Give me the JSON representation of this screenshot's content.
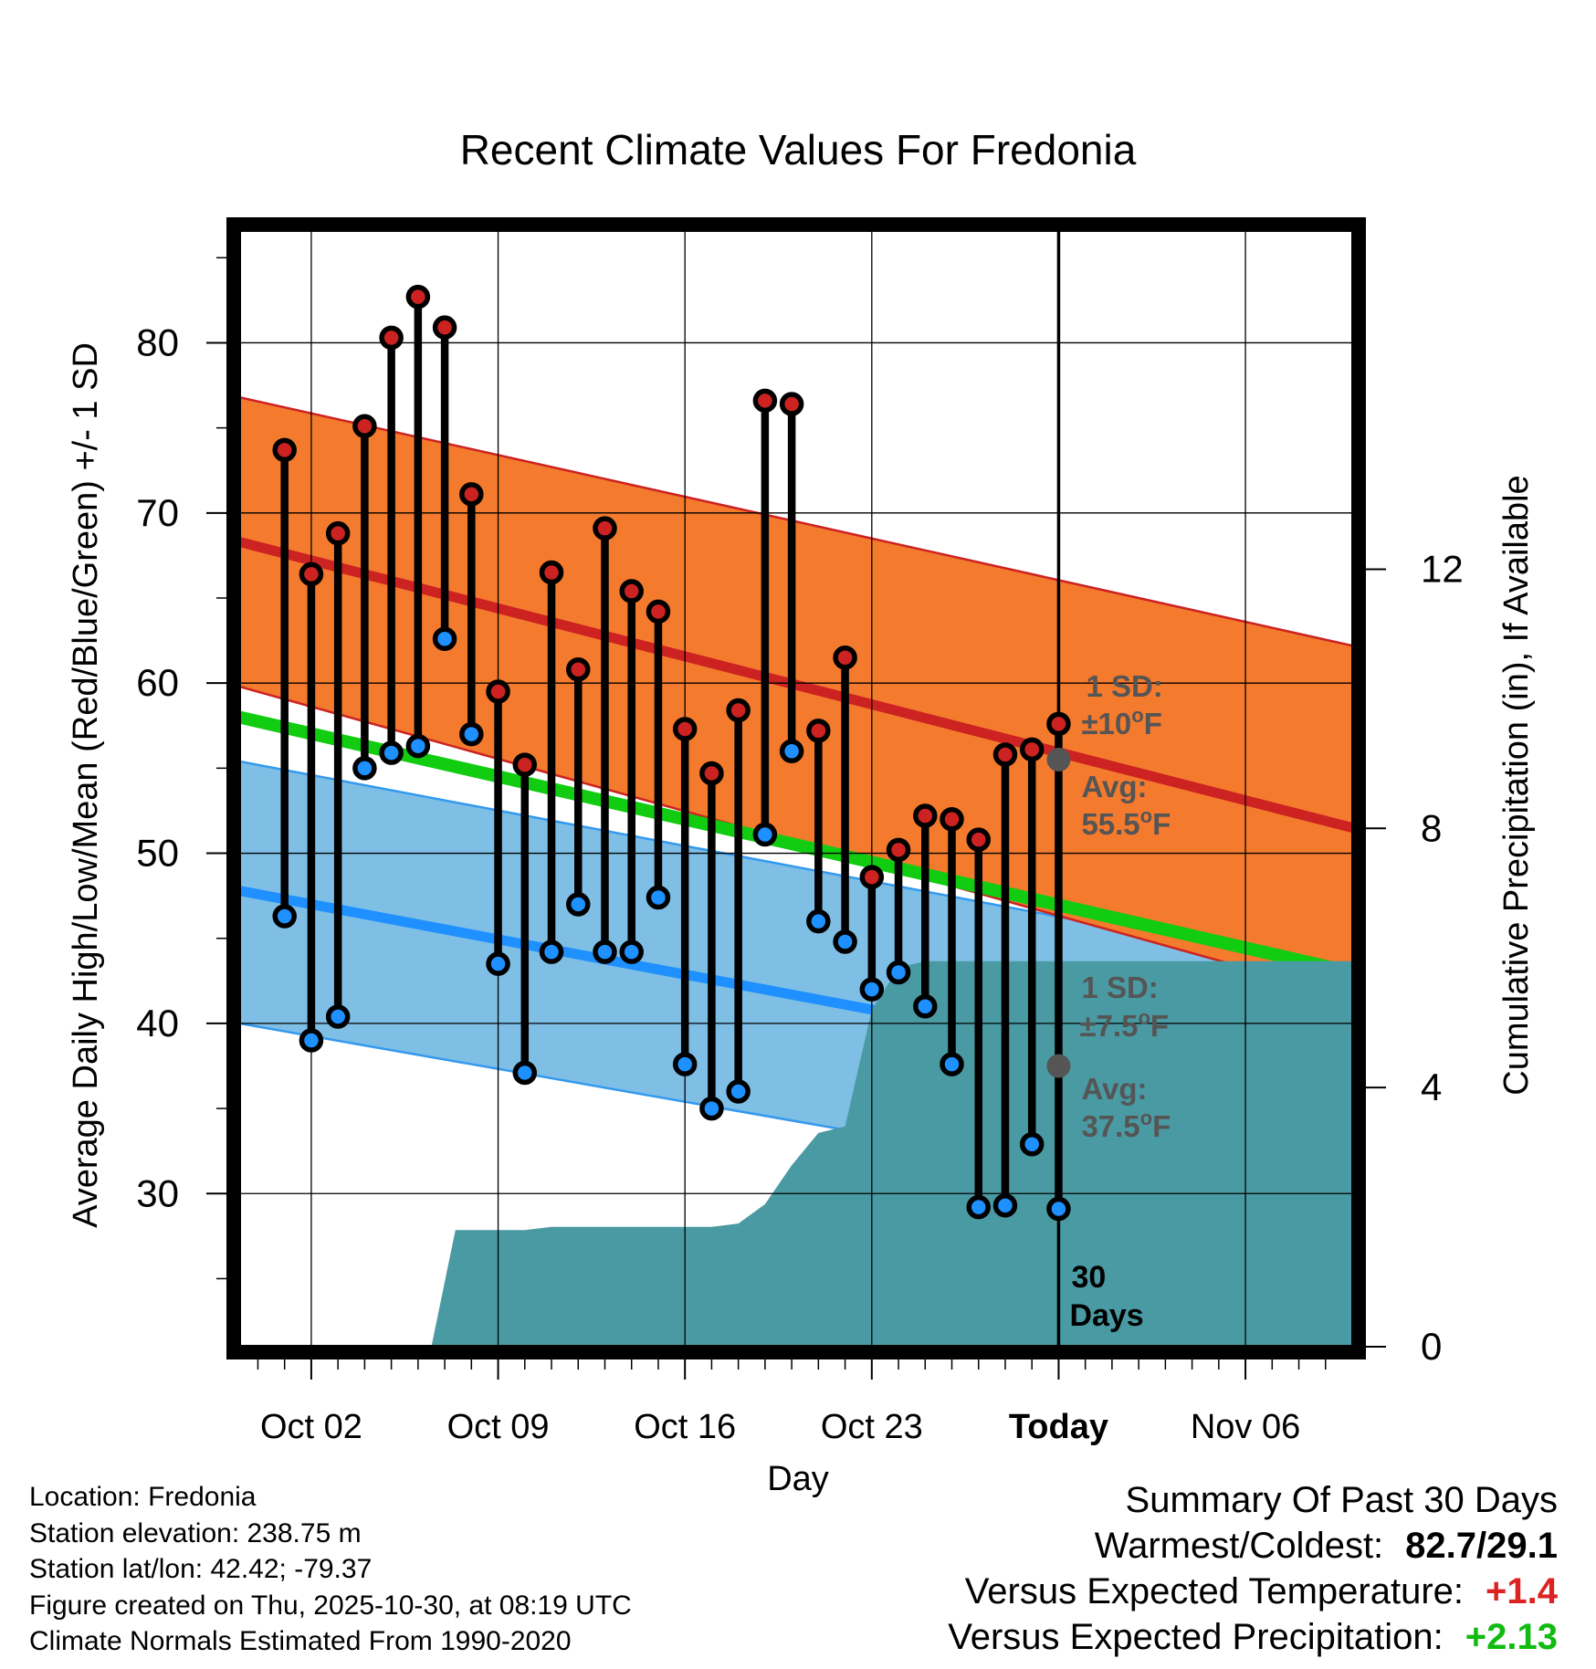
{
  "colors": {
    "high_band": "#f47a2d",
    "high_line": "#cc2222",
    "low_band": "#7fbfe6",
    "low_line": "#1e90ff",
    "low_band_edge": "#3399ee",
    "mean_line": "#11cc11",
    "precip_fill": "#4a9aa3",
    "high_marker": "#cc2222",
    "low_marker": "#1e90ff",
    "annotation": "#555555",
    "anomaly_temp": "#dd2222",
    "anomaly_precip": "#11bb11"
  },
  "chart_data": {
    "type": "line",
    "title": "Recent Climate Values For Fredonia",
    "xlabel": "Day",
    "ylabel": "Average Daily High/Low/Mean (Red/Blue/Green) +/- 1 SD",
    "y2label": "Cumulative Precipitation (in), If Available",
    "xlim": [
      -0.7,
      41.0
    ],
    "ylim": [
      21.0,
      87.0
    ],
    "y2lim": [
      0,
      17.333
    ],
    "x_ticks": [
      {
        "day": 2,
        "label": "Oct 02"
      },
      {
        "day": 9,
        "label": "Oct 09"
      },
      {
        "day": 16,
        "label": "Oct 16"
      },
      {
        "day": 23,
        "label": "Oct 23"
      },
      {
        "day": 30,
        "label": "Today"
      },
      {
        "day": 37,
        "label": "Nov 06"
      }
    ],
    "y_ticks": [
      30,
      40,
      50,
      60,
      70,
      80
    ],
    "y_minor_ticks": [
      25,
      35,
      45,
      55,
      65,
      75,
      85
    ],
    "y2_ticks": [
      0,
      4,
      8,
      12
    ],
    "x_minor_ticks": [
      0,
      1,
      3,
      4,
      5,
      6,
      7,
      8,
      10,
      11,
      12,
      13,
      14,
      15,
      17,
      18,
      19,
      20,
      21,
      22,
      24,
      25,
      26,
      27,
      28,
      29,
      31,
      32,
      33,
      34,
      35,
      36,
      38,
      39,
      40
    ],
    "grid": true,
    "today_day": 30,
    "normals": {
      "days": [
        -0.7,
        41.0
      ],
      "avg_high": [
        68.3,
        51.5
      ],
      "high_sd_upper": [
        76.8,
        62.2
      ],
      "high_sd_lower": [
        59.8,
        41.5
      ],
      "avg_low": [
        47.8,
        35.5
      ],
      "low_sd_upper": [
        55.4,
        43.0
      ],
      "low_sd_lower": [
        40.0,
        28.5
      ],
      "avg_mean": [
        58.0,
        43.0
      ]
    },
    "daily": [
      {
        "day": 1,
        "high": 73.7,
        "low": 46.3
      },
      {
        "day": 2,
        "high": 66.4,
        "low": 39.0
      },
      {
        "day": 3,
        "high": 68.8,
        "low": 40.4
      },
      {
        "day": 4,
        "high": 75.1,
        "low": 55.0
      },
      {
        "day": 5,
        "high": 80.3,
        "low": 55.9
      },
      {
        "day": 6,
        "high": 82.7,
        "low": 56.3
      },
      {
        "day": 7,
        "high": 80.9,
        "low": 62.6
      },
      {
        "day": 8,
        "high": 71.1,
        "low": 57.0
      },
      {
        "day": 9,
        "high": 59.5,
        "low": 43.5
      },
      {
        "day": 10,
        "high": 55.2,
        "low": 37.1
      },
      {
        "day": 11,
        "high": 66.5,
        "low": 44.2
      },
      {
        "day": 12,
        "high": 60.8,
        "low": 47.0
      },
      {
        "day": 13,
        "high": 69.1,
        "low": 44.2
      },
      {
        "day": 14,
        "high": 65.4,
        "low": 44.2
      },
      {
        "day": 15,
        "high": 64.2,
        "low": 47.4
      },
      {
        "day": 16,
        "high": 57.3,
        "low": 37.6
      },
      {
        "day": 17,
        "high": 54.7,
        "low": 35.0
      },
      {
        "day": 18,
        "high": 58.4,
        "low": 36.0
      },
      {
        "day": 19,
        "high": 76.6,
        "low": 51.1
      },
      {
        "day": 20,
        "high": 76.4,
        "low": 56.0
      },
      {
        "day": 21,
        "high": 57.2,
        "low": 46.0
      },
      {
        "day": 22,
        "high": 61.5,
        "low": 44.8
      },
      {
        "day": 23,
        "high": 48.6,
        "low": 42.0
      },
      {
        "day": 24,
        "high": 50.2,
        "low": 43.0
      },
      {
        "day": 25,
        "high": 52.2,
        "low": 41.0
      },
      {
        "day": 26,
        "high": 52.0,
        "low": 37.6
      },
      {
        "day": 27,
        "high": 50.8,
        "low": 29.2
      },
      {
        "day": 28,
        "high": 55.8,
        "low": 29.3
      },
      {
        "day": 29,
        "high": 56.1,
        "low": 32.9
      },
      {
        "day": 30,
        "high": 57.6,
        "low": 29.1
      }
    ],
    "precip": [
      {
        "day": 6.5,
        "value": 0.0
      },
      {
        "day": 7.4,
        "value": 1.8
      },
      {
        "day": 8.0,
        "value": 1.8
      },
      {
        "day": 9.0,
        "value": 1.8
      },
      {
        "day": 10.0,
        "value": 1.8
      },
      {
        "day": 11.0,
        "value": 1.85
      },
      {
        "day": 12.0,
        "value": 1.85
      },
      {
        "day": 13.0,
        "value": 1.85
      },
      {
        "day": 14.0,
        "value": 1.85
      },
      {
        "day": 15.0,
        "value": 1.85
      },
      {
        "day": 16.0,
        "value": 1.85
      },
      {
        "day": 17.0,
        "value": 1.85
      },
      {
        "day": 18.0,
        "value": 1.9
      },
      {
        "day": 19.0,
        "value": 2.2
      },
      {
        "day": 20.0,
        "value": 2.8
      },
      {
        "day": 21.0,
        "value": 3.3
      },
      {
        "day": 22.0,
        "value": 3.4
      },
      {
        "day": 23.0,
        "value": 5.2
      },
      {
        "day": 24.0,
        "value": 5.85
      },
      {
        "day": 25.0,
        "value": 5.95
      },
      {
        "day": 26.0,
        "value": 5.95
      },
      {
        "day": 30.0,
        "value": 5.95
      },
      {
        "day": 41.0,
        "value": 5.95
      }
    ],
    "annotations": {
      "high_sd": {
        "line1": "1 SD:",
        "line2_prefix": "±10",
        "deg": "o",
        "unit": "F"
      },
      "high_avg": {
        "line1": "Avg:",
        "line2_prefix": "55.5",
        "deg": "o",
        "unit": "F",
        "value": 55.5
      },
      "low_sd": {
        "line1": "1 SD:",
        "line2_prefix": "±7.5",
        "deg": "o",
        "unit": "F"
      },
      "low_avg": {
        "line1": "Avg:",
        "line2_prefix": "37.5",
        "deg": "o",
        "unit": "F",
        "value": 37.5
      },
      "days_line1": "30",
      "days_line2": "Days"
    }
  },
  "info": {
    "location": "Location: Fredonia",
    "elevation": "Station elevation: 238.75 m",
    "latlon": "Station lat/lon: 42.42; -79.37",
    "created": "Figure created on Thu, 2025-10-30, at 08:19 UTC",
    "normals": "Climate Normals Estimated From 1990-2020"
  },
  "summary": {
    "title": "Summary Of Past 30 Days",
    "warmest_coldest_label": "Warmest/Coldest:",
    "warmest_coldest_value": "82.7/29.1",
    "temp_label": "Versus Expected Temperature:",
    "temp_value": "+1.4",
    "precip_label": "Versus Expected Precipitation:",
    "precip_value": "+2.13"
  }
}
